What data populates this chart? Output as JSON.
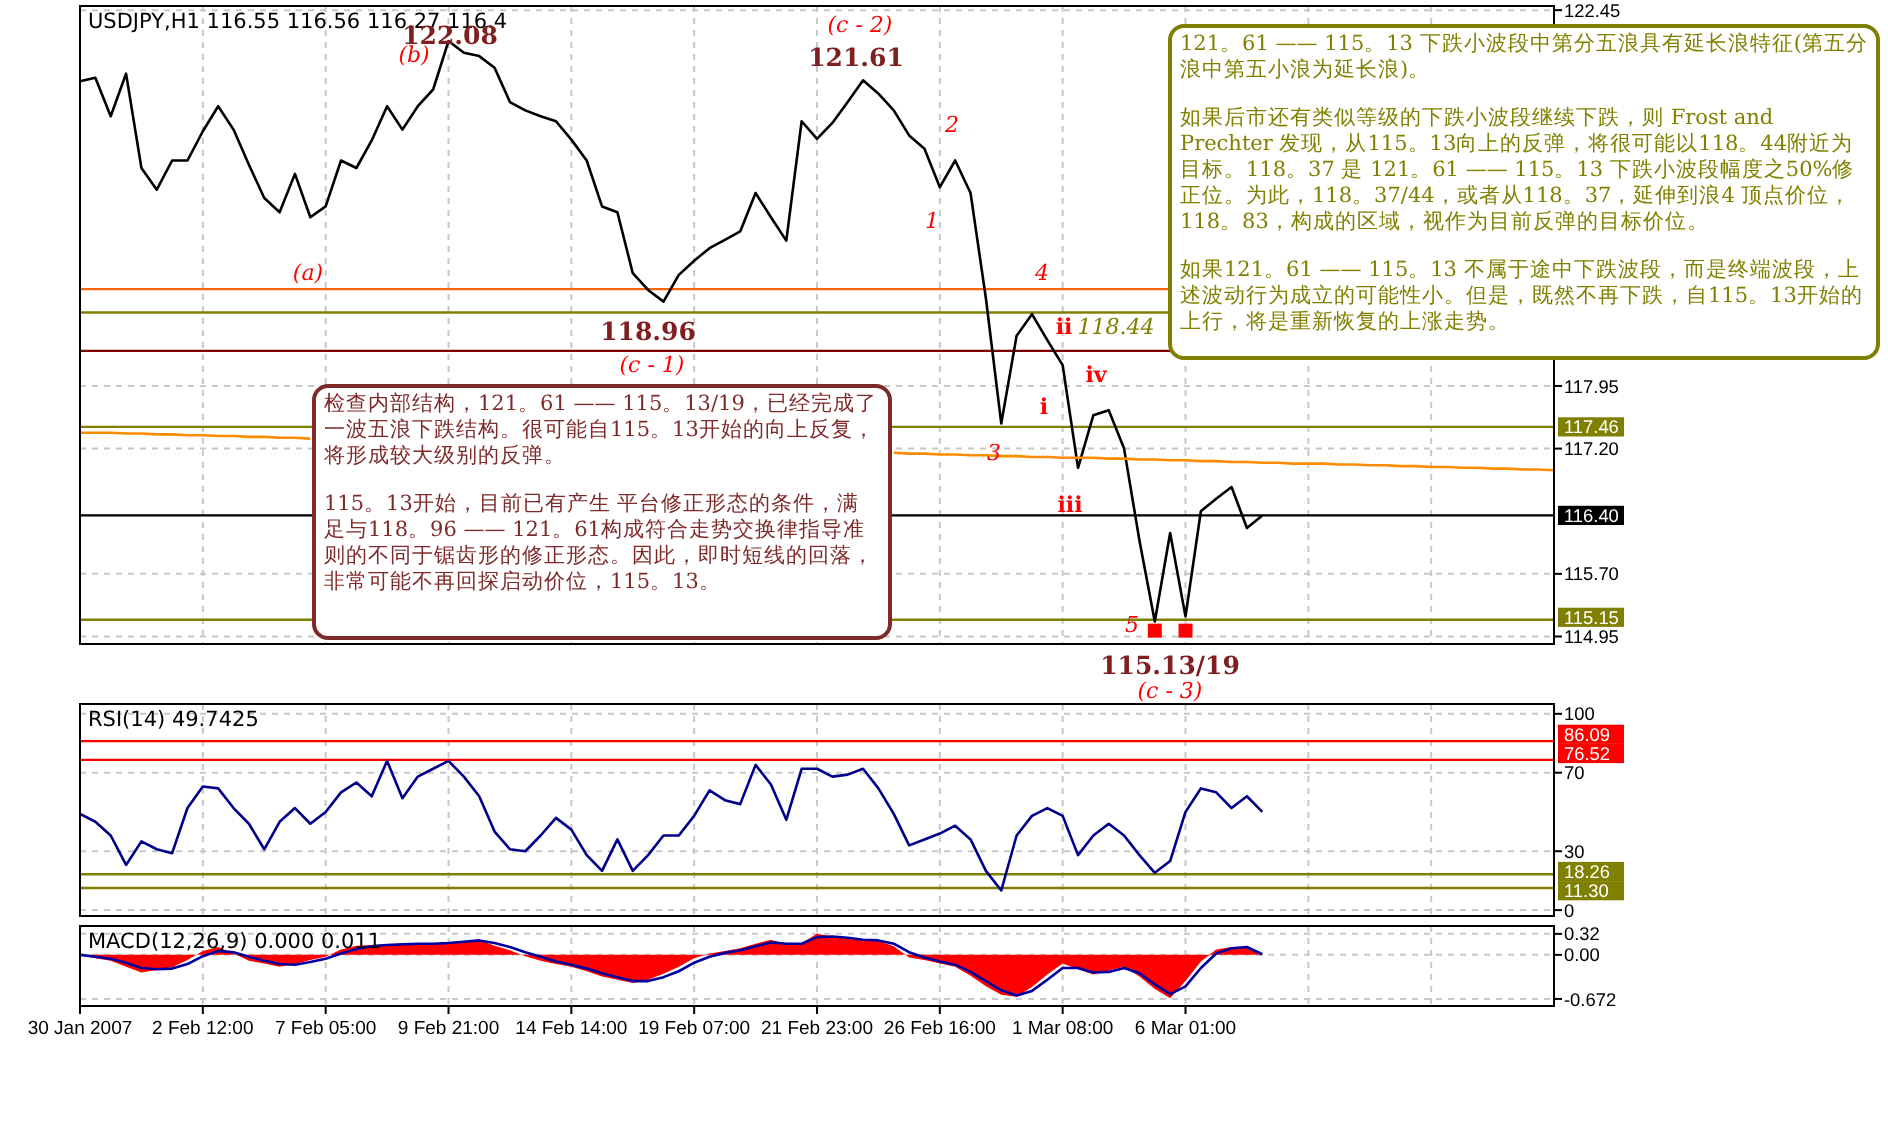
{
  "chart_data": [
    {
      "type": "line",
      "title": "USDJPY,H1 116.55 116.56 116.27 116.4",
      "categories": [
        null,
        null,
        null,
        null,
        null,
        null,
        null,
        null,
        null,
        null,
        null,
        null,
        null,
        null,
        null,
        null,
        null,
        null,
        null,
        null,
        null,
        null,
        null,
        null,
        null,
        null,
        null,
        null,
        null,
        null,
        null,
        null,
        null,
        null,
        null,
        null,
        null,
        null,
        null,
        null,
        null,
        null,
        null,
        null,
        null,
        null,
        null,
        null,
        null,
        null,
        null,
        null,
        null,
        null,
        null,
        null,
        null,
        null,
        null,
        null,
        null,
        null,
        null,
        null,
        null,
        null,
        null,
        null,
        null,
        null,
        null,
        null,
        null,
        null,
        null,
        null,
        null,
        null,
        null,
        null,
        null,
        null,
        null,
        null,
        null,
        null,
        null,
        null,
        null,
        null,
        null,
        null,
        null,
        null,
        null,
        null,
        null
      ],
      "ylim": [
        114.86,
        122.5
      ],
      "yticks": [
        122.45,
        117.95,
        {
          "value": 117.2,
          "label": "117.20"
        },
        {
          "value": 115.7,
          "label": "115.70"
        },
        114.95
      ],
      "tick_labels": "y",
      "grid": true,
      "series": [
        {
          "color": "#000000",
          "values": [
            121.6,
            121.64,
            121.18,
            121.69,
            120.56,
            120.3,
            120.65,
            120.65,
            121.0,
            121.3,
            121.02,
            120.6,
            120.2,
            120.03,
            120.49,
            119.97,
            120.1,
            120.65,
            120.56,
            120.89,
            121.3,
            121.02,
            121.3,
            121.5,
            122.08,
            121.94,
            121.9,
            121.76,
            121.35,
            121.25,
            121.18,
            121.12,
            120.9,
            120.65,
            120.1,
            120.03,
            119.3,
            119.1,
            118.96,
            119.28,
            119.45,
            119.6,
            119.7,
            119.8,
            120.26,
            119.97,
            119.69,
            121.12,
            120.91,
            121.1,
            121.35,
            121.61,
            121.45,
            121.25,
            120.95,
            120.79,
            120.33,
            120.65,
            120.26,
            119.0,
            117.5,
            118.55,
            118.81,
            118.5,
            118.2,
            116.97,
            117.6,
            117.66,
            117.2,
            116.1,
            115.13,
            116.19,
            115.19,
            116.45,
            116.6,
            116.74,
            116.25,
            116.4,
            null,
            null,
            null,
            null,
            null,
            null,
            null,
            null,
            null,
            null,
            null,
            null,
            null,
            null,
            null,
            null,
            null,
            null,
            null
          ]
        },
        {
          "type": "line",
          "color": "#ff8c00",
          "values": [
            117.39,
            117.39,
            117.39,
            117.38,
            117.38,
            117.37,
            117.37,
            117.36,
            117.36,
            117.35,
            117.35,
            117.34,
            117.34,
            117.33,
            117.33,
            117.32,
            null,
            null,
            null,
            null,
            null,
            null,
            null,
            null,
            null,
            null,
            null,
            null,
            null,
            null,
            null,
            null,
            null,
            null,
            null,
            null,
            null,
            null,
            null,
            null,
            null,
            null,
            null,
            null,
            null,
            null,
            null,
            null,
            null,
            null,
            null,
            null,
            null,
            null,
            null,
            null,
            null,
            null,
            null,
            null,
            null,
            null,
            null,
            null,
            null,
            null,
            null,
            null,
            null,
            null,
            null,
            null,
            null,
            null,
            null,
            null,
            null,
            null,
            null,
            null,
            null,
            null,
            null,
            null,
            null,
            null,
            null,
            null,
            null,
            null,
            null,
            null,
            null,
            null,
            null,
            null,
            null
          ]
        },
        {
          "type": "line",
          "color": "#ff8c00",
          "values": [
            null,
            null,
            null,
            null,
            null,
            null,
            null,
            null,
            null,
            null,
            null,
            null,
            null,
            null,
            null,
            null,
            null,
            null,
            null,
            null,
            null,
            null,
            null,
            null,
            null,
            null,
            null,
            null,
            null,
            null,
            null,
            null,
            null,
            null,
            null,
            null,
            null,
            null,
            null,
            null,
            null,
            null,
            null,
            null,
            null,
            null,
            null,
            null,
            null,
            null,
            null,
            null,
            null,
            117.15,
            117.14,
            117.14,
            117.13,
            117.13,
            117.12,
            117.12,
            117.11,
            117.11,
            117.1,
            117.1,
            117.09,
            117.09,
            117.09,
            117.08,
            117.08,
            117.07,
            117.07,
            117.06,
            117.06,
            117.05,
            117.05,
            117.04,
            117.04,
            117.03,
            117.03,
            117.02,
            117.02,
            117.02,
            117.01,
            117.01,
            117.0,
            117.0,
            116.99,
            116.99,
            116.98,
            116.98,
            116.97,
            116.97,
            116.96,
            116.96,
            116.95,
            116.95,
            116.94
          ]
        },
        {
          "type": "scatter",
          "marker": "square",
          "color": "#ff0000",
          "values": [
            null,
            null,
            null,
            null,
            null,
            null,
            null,
            null,
            null,
            null,
            null,
            null,
            null,
            null,
            null,
            null,
            null,
            null,
            null,
            null,
            null,
            null,
            null,
            null,
            null,
            null,
            null,
            null,
            null,
            null,
            null,
            null,
            null,
            null,
            null,
            null,
            null,
            null,
            null,
            null,
            null,
            null,
            null,
            null,
            null,
            null,
            null,
            null,
            null,
            null,
            null,
            null,
            null,
            null,
            null,
            null,
            null,
            null,
            null,
            null,
            null,
            null,
            null,
            null,
            null,
            null,
            null,
            null,
            null,
            null,
            115.02,
            null,
            115.02,
            null,
            null,
            null,
            null,
            null,
            null,
            null,
            null,
            null,
            null,
            null,
            null,
            null,
            null,
            null,
            null,
            null,
            null,
            null,
            null,
            null,
            null,
            null,
            null
          ]
        }
      ],
      "ref_lines": [
        {
          "axis": "y",
          "value": 119.11,
          "color": "#ff6600"
        },
        {
          "axis": "y",
          "value": 118.83,
          "color": "#808000"
        },
        {
          "axis": "y",
          "value": 118.37,
          "color": "#800000"
        },
        {
          "axis": "y",
          "value": 117.46,
          "label": "117.46",
          "color": "#808000"
        },
        {
          "axis": "y",
          "value": 116.4,
          "label": "116.40",
          "color": "#000000"
        },
        {
          "axis": "y",
          "value": 115.15,
          "label": "115.15",
          "color": "#808000"
        }
      ],
      "annotations": [
        "122.08",
        "(b)",
        "(c - 2)",
        "121.61",
        "2",
        "1",
        "(a)",
        "4",
        "118.96",
        "(c - 1)",
        "ii",
        "118.44",
        "iv",
        "i",
        "3",
        "iii",
        "5",
        "121。61 —— 115。13 下跌小波段中第分五浪具有延长浪特征(第五分浪中第五小浪为延长浪)。",
        "如果后市还有类似等级的下跌小波段继续下跌，则 Frost and Prechter 发现，从115。13向上的反弹，将很可能以118。44附近为目标。118。37 是 121。61 —— 115。13 下跌小波段幅度之50%修正位。为此，118。37/44，或者从118。37，延伸到浪4 顶点价位，118。83，构成的区域，视作为目前反弹的目标价位。",
        "如果121。61 —— 115。13 不属于途中下跌波段，而是终端波段，上述波动行为成立的可能性小。但是，既然不再下跌，自115。13开始的上行，将是重新恢复的上涨走势。",
        "检查内部结构，121。61 —— 115。13/19，已经完成了一波五浪下跌结构。很可能自115。13开始的向上反复，将形成较大级别的反弹。",
        "115。13开始，目前已有产生 平台修正形态的条件，满足与118。96 —— 121。61构成符合走势交换律指导准则的不同于锯齿形的修正形态。因此，即时短线的回落，非常可能不再回探启动价位，115。13。",
        "115.13/19",
        "(c - 3)"
      ]
    },
    {
      "type": "line",
      "title": "RSI(14) 49.7425",
      "categories": [
        null,
        null,
        null,
        null,
        null,
        null,
        null,
        null,
        null,
        null,
        null,
        null,
        null,
        null,
        null,
        null,
        null,
        null,
        null,
        null,
        null,
        null,
        null,
        null,
        null,
        null,
        null,
        null,
        null,
        null,
        null,
        null,
        null,
        null,
        null,
        null,
        null,
        null,
        null,
        null,
        null,
        null,
        null,
        null,
        null,
        null,
        null,
        null,
        null,
        null,
        null,
        null,
        null,
        null,
        null,
        null,
        null,
        null,
        null,
        null,
        null,
        null,
        null,
        null,
        null,
        null,
        null,
        null,
        null,
        null,
        null,
        null,
        null,
        null,
        null,
        null,
        null,
        null,
        null,
        null,
        null,
        null,
        null,
        null,
        null,
        null,
        null,
        null,
        null,
        null,
        null,
        null,
        null,
        null,
        null,
        null,
        null
      ],
      "ylim": [
        -3,
        105
      ],
      "yticks": [
        0,
        30,
        70,
        100
      ],
      "tick_labels": "y",
      "grid": true,
      "series": [
        {
          "color": "#00008b",
          "values": [
            49,
            45,
            38,
            23,
            35,
            31,
            29,
            52,
            63,
            62,
            52,
            44,
            31,
            45,
            52,
            44,
            50,
            60,
            65,
            58,
            76,
            57,
            68,
            72,
            76,
            68,
            58,
            40,
            31,
            30,
            38,
            47,
            41,
            28,
            20,
            36,
            20,
            28,
            38,
            38,
            48,
            61,
            56,
            54,
            74,
            64,
            46,
            72,
            72,
            68,
            69,
            72,
            62,
            49,
            33,
            36,
            39,
            43,
            36,
            20,
            10,
            38,
            48,
            52,
            48,
            28,
            38,
            44,
            38,
            28,
            19,
            25,
            50,
            62,
            60,
            52,
            58,
            50,
            null,
            null,
            null,
            null,
            null,
            null,
            null,
            null,
            null,
            null,
            null,
            null,
            null,
            null,
            null,
            null,
            null,
            null,
            null
          ]
        }
      ],
      "ref_lines": [
        {
          "axis": "y",
          "value": 86.09,
          "label": "86.09",
          "color": "#ff0000"
        },
        {
          "axis": "y",
          "value": 76.52,
          "label": "76.52",
          "color": "#ff0000"
        },
        {
          "axis": "y",
          "value": 18.26,
          "label": "18.26",
          "color": "#808000"
        },
        {
          "axis": "y",
          "value": 11.3,
          "label": "11.30",
          "color": "#808000"
        }
      ]
    },
    {
      "type": "line",
      "title": "MACD(12,26,9) 0.000 0.011",
      "categories": [
        "30 Jan 2007",
        null,
        null,
        null,
        null,
        null,
        null,
        null,
        "2 Feb 12:00",
        null,
        null,
        null,
        null,
        null,
        null,
        null,
        "7 Feb 05:00",
        null,
        null,
        null,
        null,
        null,
        null,
        null,
        "9 Feb 21:00",
        null,
        null,
        null,
        null,
        null,
        null,
        null,
        "14 Feb 14:00",
        null,
        null,
        null,
        null,
        null,
        null,
        null,
        "19 Feb 07:00",
        null,
        null,
        null,
        null,
        null,
        null,
        null,
        "21 Feb 23:00",
        null,
        null,
        null,
        null,
        null,
        null,
        null,
        "26 Feb 16:00",
        null,
        null,
        null,
        null,
        null,
        null,
        null,
        "1 Mar 08:00",
        null,
        null,
        null,
        null,
        null,
        null,
        null,
        "6 Mar 01:00",
        null,
        null,
        null,
        null,
        null,
        null,
        null,
        null,
        null,
        null,
        null,
        null,
        null,
        null,
        null,
        null,
        null,
        null,
        null,
        null,
        null,
        null,
        null,
        null
      ],
      "ylim": [
        -0.78,
        0.44
      ],
      "yticks": [
        0.32,
        {
          "value": 0,
          "label": "0.00"
        },
        -0.672
      ],
      "grid": true,
      "series": [
        {
          "type": "area",
          "color": "#ff0000",
          "values": [
            0,
            -0.05,
            -0.09,
            -0.18,
            -0.27,
            -0.23,
            -0.19,
            -0.08,
            0.06,
            0.12,
            0.02,
            -0.09,
            -0.13,
            -0.18,
            -0.14,
            -0.08,
            -0.03,
            0.08,
            0.14,
            0.15,
            0.16,
            0.16,
            0.17,
            0.18,
            0.18,
            0.21,
            0.23,
            0.14,
            0.07,
            -0.02,
            -0.09,
            -0.14,
            -0.18,
            -0.25,
            -0.33,
            -0.38,
            -0.43,
            -0.38,
            -0.29,
            -0.18,
            -0.05,
            0.02,
            0.06,
            0.1,
            0.17,
            0.23,
            0.16,
            0.18,
            0.32,
            0.28,
            0.24,
            0.22,
            0.21,
            0.13,
            -0.04,
            -0.08,
            -0.13,
            -0.18,
            -0.32,
            -0.48,
            -0.61,
            -0.64,
            -0.49,
            -0.3,
            -0.13,
            -0.22,
            -0.3,
            -0.24,
            -0.18,
            -0.33,
            -0.52,
            -0.66,
            -0.4,
            -0.1,
            0.08,
            0.12,
            0.12,
            0.02,
            null,
            null,
            null,
            null,
            null,
            null,
            null,
            null,
            null,
            null,
            null,
            null,
            null,
            null,
            null,
            null,
            null,
            null,
            null
          ]
        },
        {
          "color": "#0000a0",
          "values": [
            0,
            -0.03,
            -0.06,
            -0.12,
            -0.2,
            -0.22,
            -0.21,
            -0.14,
            -0.02,
            0.06,
            0.04,
            -0.03,
            -0.09,
            -0.14,
            -0.15,
            -0.11,
            -0.06,
            0.02,
            0.09,
            0.13,
            0.15,
            0.16,
            0.17,
            0.17,
            0.18,
            0.2,
            0.22,
            0.18,
            0.12,
            0.04,
            -0.03,
            -0.1,
            -0.15,
            -0.21,
            -0.28,
            -0.34,
            -0.4,
            -0.4,
            -0.34,
            -0.25,
            -0.12,
            -0.03,
            0.03,
            0.07,
            0.13,
            0.19,
            0.17,
            0.17,
            0.27,
            0.28,
            0.26,
            0.23,
            0.22,
            0.17,
            0.04,
            -0.04,
            -0.1,
            -0.15,
            -0.26,
            -0.4,
            -0.54,
            -0.62,
            -0.55,
            -0.38,
            -0.2,
            -0.2,
            -0.27,
            -0.26,
            -0.2,
            -0.28,
            -0.45,
            -0.6,
            -0.48,
            -0.2,
            0.02,
            0.1,
            0.12,
            0.01,
            null,
            null,
            null,
            null,
            null,
            null,
            null,
            null,
            null,
            null,
            null,
            null,
            null,
            null,
            null,
            null,
            null,
            null,
            null
          ]
        }
      ]
    }
  ]
}
